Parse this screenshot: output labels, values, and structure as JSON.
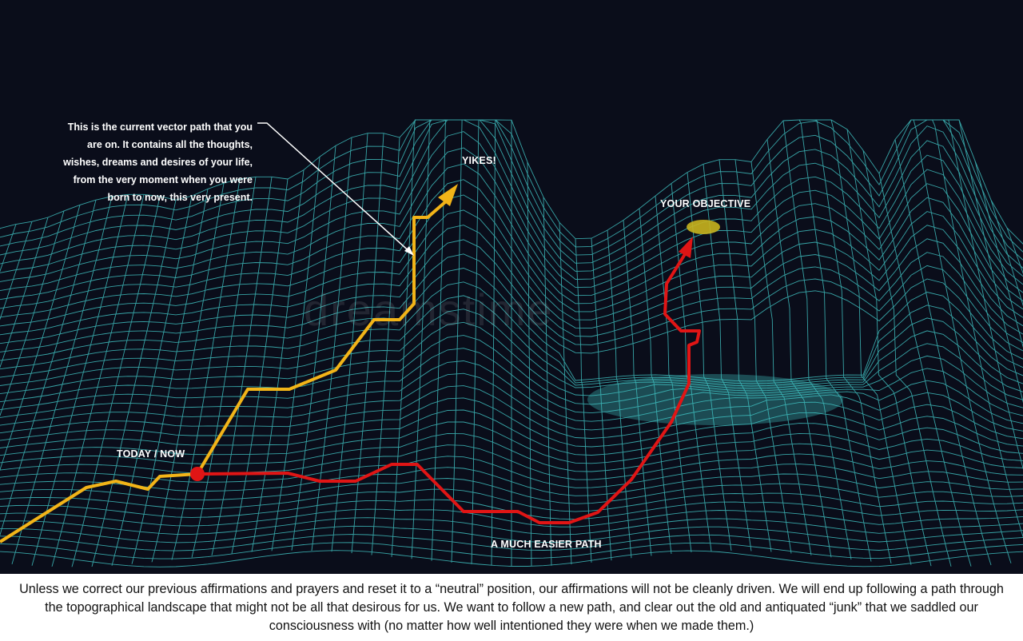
{
  "labels": {
    "callout": "This is the current vector path that you are on. It contains all the thoughts, wishes, dreams and desires of your life, from the very moment when you were born to now, this very present.",
    "yikes": "YIKES!",
    "objective": "YOUR OBJECTIVE",
    "today": "TODAY / NOW",
    "easier_path": "A MUCH EASIER PATH"
  },
  "watermark": "dreamstime",
  "caption": "Unless we correct our previous affirmations and prayers and reset it to a “neutral” position, our affirmations will not be cleanly driven. We will end up following a path through the topographical landscape that might not be all that desirous for us. We want to follow a new path, and clear out the old and antiquated “junk” that we saddled our consciousness with (no matter how well intentioned they were when we made them.)",
  "colors": {
    "background": "#0a0d1a",
    "mesh": "#3fbfbf",
    "current_path": "#f2b418",
    "easier_path": "#e01515",
    "objective_marker": "#c8b41e",
    "label_text": "#ffffff"
  }
}
